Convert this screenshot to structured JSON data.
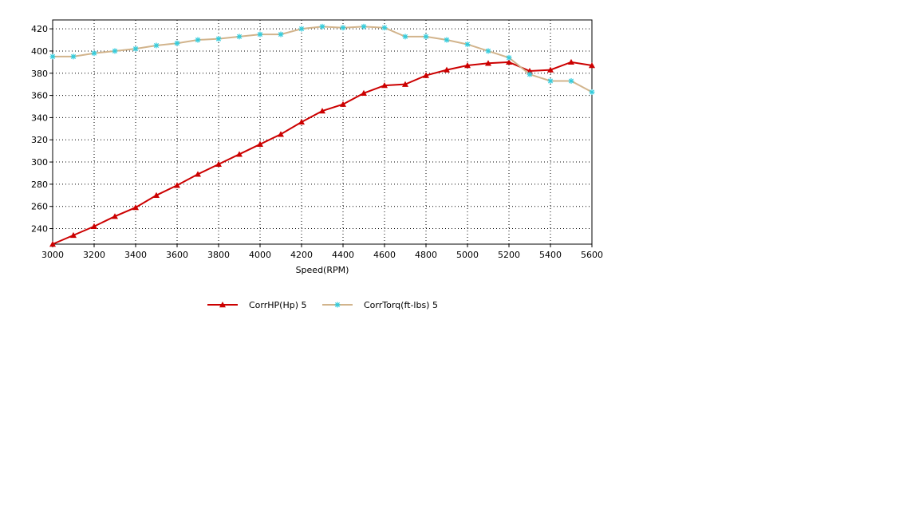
{
  "chart_data": {
    "type": "line",
    "xlabel": "Speed(RPM)",
    "ylabel": "",
    "title": "",
    "xlim": [
      3000,
      5600
    ],
    "ylim": [
      226,
      428
    ],
    "grid": true,
    "legend_position": "bottom",
    "x_ticks": [
      3000,
      3200,
      3400,
      3600,
      3800,
      4000,
      4200,
      4400,
      4600,
      4800,
      5000,
      5200,
      5400,
      5600
    ],
    "y_ticks": [
      240,
      260,
      280,
      300,
      320,
      340,
      360,
      380,
      400,
      420
    ],
    "x": [
      3000,
      3100,
      3200,
      3300,
      3400,
      3500,
      3600,
      3700,
      3800,
      3900,
      4000,
      4100,
      4200,
      4300,
      4400,
      4500,
      4600,
      4700,
      4800,
      4900,
      5000,
      5100,
      5200,
      5300,
      5400,
      5500,
      5600
    ],
    "series": [
      {
        "name": "CorrHP(Hp)  5",
        "color": "#cc0000",
        "marker": "triangle",
        "values": [
          226,
          234,
          242,
          251,
          259,
          270,
          279,
          289,
          298,
          307,
          316,
          325,
          336,
          346,
          352,
          362,
          369,
          370,
          378,
          383,
          387,
          389,
          390,
          382,
          383,
          390,
          387
        ]
      },
      {
        "name": "CorrTorq(ft-lbs)  5",
        "color": "#d2b48c",
        "marker": "star",
        "marker_color": "#33ccdd",
        "values": [
          395,
          395,
          398,
          400,
          402,
          405,
          407,
          410,
          411,
          413,
          415,
          415,
          420,
          422,
          421,
          422,
          421,
          413,
          413,
          410,
          406,
          400,
          394,
          379,
          373,
          373,
          363
        ]
      }
    ]
  }
}
